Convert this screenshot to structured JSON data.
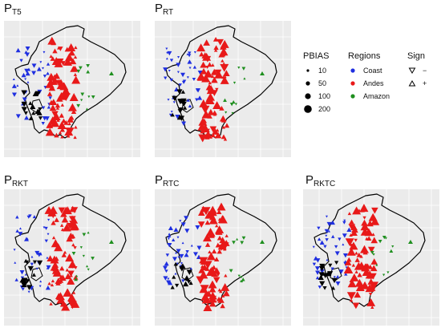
{
  "colors": {
    "panel_bg": "#ebebeb",
    "grid": "#ffffff",
    "outline": "#000000",
    "coast": "#1f2fe0",
    "andes": "#e81919",
    "amazon": "#1f8f1f",
    "other": "#000000"
  },
  "panels": [
    {
      "main": "P",
      "sub": "T5"
    },
    {
      "main": "P",
      "sub": "RT"
    },
    {
      "main": "P",
      "sub": "RKT"
    },
    {
      "main": "P",
      "sub": "RTC"
    },
    {
      "main": "P",
      "sub": "RKTC"
    }
  ],
  "legend": {
    "pbias": {
      "title": "PBIAS",
      "items": [
        "10",
        "50",
        "100",
        "200"
      ]
    },
    "regions": {
      "title": "Regions",
      "items": [
        {
          "label": "Coast",
          "color": "#1f2fe0"
        },
        {
          "label": "Andes",
          "color": "#e81919"
        },
        {
          "label": "Amazon",
          "color": "#1f8f1f"
        }
      ]
    },
    "sign": {
      "title": "Sign",
      "items": [
        {
          "label": "−",
          "icon": "triangle-down-icon"
        },
        {
          "label": "+",
          "icon": "triangle-up-icon"
        }
      ]
    }
  }
}
